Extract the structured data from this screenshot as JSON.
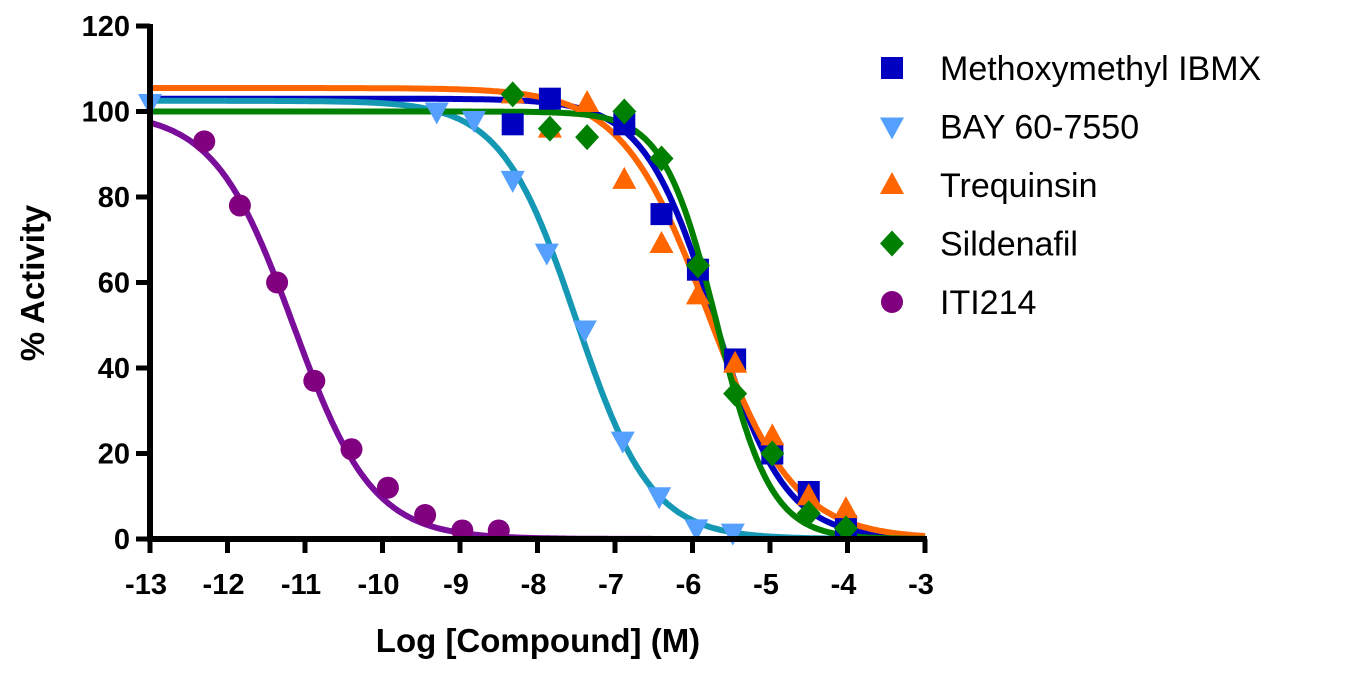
{
  "chart_data": {
    "type": "scatter",
    "title": "",
    "xlabel": "Log [Compound] (M)",
    "ylabel": "% Activity",
    "xlim": [
      -13,
      -3
    ],
    "ylim": [
      0,
      120
    ],
    "xticks": [
      "-13",
      "-12",
      "-11",
      "-10",
      "-9",
      "-8",
      "-7",
      "-6",
      "-5",
      "-4",
      "-3"
    ],
    "yticks": [
      "0",
      "20",
      "40",
      "60",
      "80",
      "100",
      "120"
    ],
    "grid": false,
    "legend_position": "right",
    "series": [
      {
        "name": "Methoxymethyl IBMX",
        "marker": "square",
        "color": "#0000c0",
        "curve_color": "#0000c0",
        "x": [
          -8.32,
          -7.84,
          -6.88,
          -6.4,
          -5.93,
          -5.45,
          -4.97,
          -4.5,
          -4.02
        ],
        "y": [
          97,
          103,
          97,
          76,
          63,
          42,
          20,
          11,
          3
        ],
        "curve": {
          "top": 103,
          "bottom": 0,
          "logIC50": -5.72,
          "hill": 0.95
        }
      },
      {
        "name": "BAY 60-7550",
        "marker": "triangle-down",
        "color": "#55a0ff",
        "curve_color": "#1598b4",
        "x": [
          -13,
          -9.3,
          -8.82,
          -8.32,
          -7.88,
          -7.39,
          -6.9,
          -6.43,
          -5.95,
          -5.48
        ],
        "y": [
          102,
          100,
          98,
          84,
          67,
          49,
          23,
          10,
          2.5,
          1.5
        ],
        "curve": {
          "top": 102.5,
          "bottom": 0,
          "logIC50": -7.5,
          "hill": 0.9
        }
      },
      {
        "name": "Trequinsin",
        "marker": "triangle-up",
        "color": "#ff6600",
        "curve_color": "#ff6600",
        "x": [
          -8.32,
          -7.84,
          -7.36,
          -6.88,
          -6.4,
          -5.93,
          -5.45,
          -4.97,
          -4.5,
          -4.02
        ],
        "y": [
          104,
          96,
          102,
          84,
          69,
          57,
          41,
          24,
          10,
          7
        ],
        "curve": {
          "top": 105.5,
          "bottom": 0,
          "logIC50": -5.8,
          "hill": 0.78
        }
      },
      {
        "name": "Sildenafil",
        "marker": "diamond",
        "color": "#008000",
        "curve_color": "#008000",
        "x": [
          -8.32,
          -7.84,
          -7.36,
          -6.88,
          -6.4,
          -5.93,
          -5.45,
          -4.97,
          -4.5,
          -4.02
        ],
        "y": [
          104,
          96,
          94,
          100,
          89,
          64,
          34,
          20,
          6,
          2.5
        ],
        "curve": {
          "top": 100,
          "bottom": 0,
          "logIC50": -5.68,
          "hill": 1.25
        }
      },
      {
        "name": "ITI214",
        "marker": "circle",
        "color": "#800080",
        "curve_color": "#7a0e9a",
        "x": [
          -12.3,
          -11.84,
          -11.36,
          -10.88,
          -10.4,
          -9.93,
          -9.45,
          -8.97,
          -8.5
        ],
        "y": [
          93,
          78,
          60,
          37,
          21,
          12,
          5.6,
          2,
          2
        ],
        "curve": {
          "top": 100,
          "bottom": 0,
          "logIC50": -11.15,
          "hill": 0.85
        }
      }
    ]
  }
}
